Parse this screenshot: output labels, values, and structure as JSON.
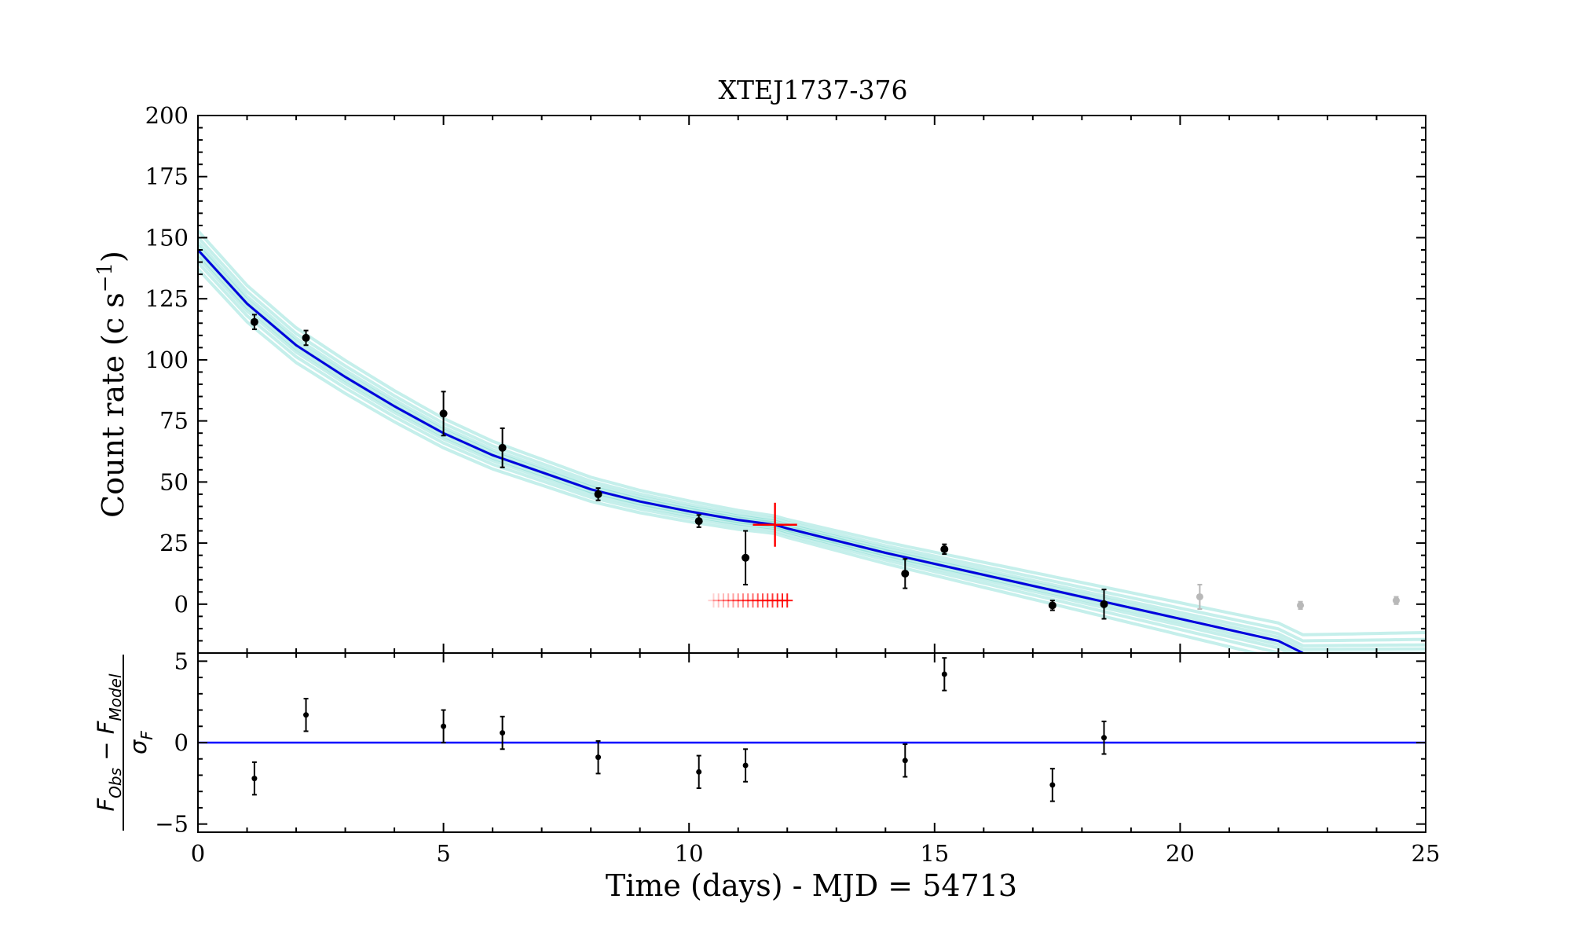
{
  "chart_data": [
    {
      "panel": "light-curve",
      "type": "scatter",
      "title": "XTEJ1737-376",
      "ylabel": "Count rate (c s",
      "ylabel_sup": "−1",
      "ylabel_close": ")",
      "xlim": [
        0,
        25
      ],
      "ylim": [
        -20,
        200
      ],
      "yticks": [
        0,
        25,
        50,
        75,
        100,
        125,
        150,
        175,
        200
      ],
      "colors": {
        "data": "#000000",
        "model": "#0000dd",
        "samples": "#2ec4b6",
        "burst": "#ff0000",
        "excluded": "#b8b8b8"
      },
      "series": [
        {
          "kind": "points",
          "points": [
            {
              "x": 1.15,
              "y": 115.5,
              "yerr": 3
            },
            {
              "x": 2.2,
              "y": 109,
              "yerr": 3
            },
            {
              "x": 5.0,
              "y": 78,
              "yerr": 9
            },
            {
              "x": 6.2,
              "y": 64,
              "yerr": 8
            },
            {
              "x": 8.15,
              "y": 45,
              "yerr": 2.5
            },
            {
              "x": 10.2,
              "y": 34,
              "yerr": 2.5
            },
            {
              "x": 11.15,
              "y": 19,
              "yerr": 11
            },
            {
              "x": 14.4,
              "y": 12.5,
              "yerr": 6
            },
            {
              "x": 15.2,
              "y": 22.5,
              "yerr": 2
            },
            {
              "x": 17.4,
              "y": -0.5,
              "yerr": 2
            },
            {
              "x": 18.45,
              "y": 0,
              "yerr": 6
            }
          ]
        },
        {
          "kind": "excluded-points",
          "points": [
            {
              "x": 20.4,
              "y": 3,
              "yerr": 5
            },
            {
              "x": 22.45,
              "y": -0.5,
              "yerr": 1.5
            },
            {
              "x": 24.4,
              "y": 1.5,
              "yerr": 1.5
            }
          ]
        },
        {
          "kind": "model",
          "x": [
            0,
            1,
            2,
            3,
            4,
            5,
            6,
            7,
            8,
            9,
            10,
            11,
            11.75,
            12,
            13,
            14,
            15,
            16,
            17,
            18,
            19,
            20,
            21,
            22,
            22.5
          ],
          "y": [
            145,
            123,
            106,
            93,
            81,
            70,
            61,
            54,
            47,
            42,
            38,
            34.5,
            32.5,
            31,
            26,
            21,
            16.5,
            12,
            7.5,
            3,
            -1.5,
            -6,
            -10.5,
            -15,
            -20
          ]
        },
        {
          "kind": "burst",
          "time": 11.75,
          "rate": 32.5,
          "xerr": 0.45,
          "yerr": 9,
          "samples_y": 1.5,
          "samples_x": [
            10.5,
            10.6,
            10.7,
            10.8,
            10.9,
            11.0,
            11.1,
            11.2,
            11.3,
            11.4,
            11.5,
            11.6,
            11.7,
            11.8,
            11.9,
            12.0
          ]
        }
      ]
    },
    {
      "panel": "residuals",
      "type": "scatter",
      "ylabel_num_a": "F",
      "ylabel_num_a_sub": "Obs",
      "ylabel_num_op": " − ",
      "ylabel_num_b": "F",
      "ylabel_num_b_sub": "Model",
      "ylabel_den": "σ",
      "ylabel_den_sub": "F",
      "xlabel": "Time (days) - MJD = 54713",
      "xlim": [
        0,
        25
      ],
      "ylim": [
        -5.5,
        5.5
      ],
      "xticks": [
        0,
        5,
        10,
        15,
        20,
        25
      ],
      "yticks": [
        -5,
        0,
        5
      ],
      "ytick_labels": [
        "−5",
        "0",
        "5"
      ],
      "zero_line_color": "#0000ff",
      "points": [
        {
          "x": 1.15,
          "y": -2.2,
          "yerr": 1
        },
        {
          "x": 2.2,
          "y": 1.7,
          "yerr": 1
        },
        {
          "x": 5.0,
          "y": 1.0,
          "yerr": 1
        },
        {
          "x": 6.2,
          "y": 0.6,
          "yerr": 1
        },
        {
          "x": 8.15,
          "y": -0.9,
          "yerr": 1
        },
        {
          "x": 10.2,
          "y": -1.8,
          "yerr": 1
        },
        {
          "x": 11.15,
          "y": -1.4,
          "yerr": 1
        },
        {
          "x": 14.4,
          "y": -1.1,
          "yerr": 1
        },
        {
          "x": 15.2,
          "y": 4.2,
          "yerr": 1
        },
        {
          "x": 17.4,
          "y": -2.6,
          "yerr": 1
        },
        {
          "x": 18.45,
          "y": 0.3,
          "yerr": 1
        }
      ]
    }
  ]
}
